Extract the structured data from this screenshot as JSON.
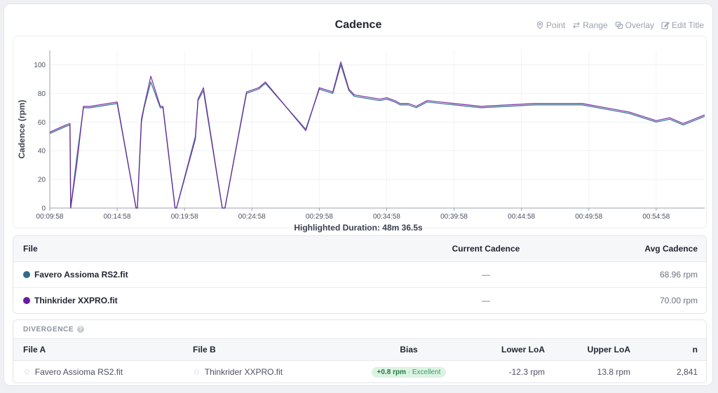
{
  "chart": {
    "title": "Cadence",
    "toolbar": [
      {
        "icon": "pin-icon",
        "label": "Point"
      },
      {
        "icon": "arrows-icon",
        "label": "Range"
      },
      {
        "icon": "overlay-icon",
        "label": "Overlay"
      },
      {
        "icon": "edit-icon",
        "label": "Edit Title"
      }
    ],
    "highlighted_duration": "Highlighted Duration: 48m 36.5s"
  },
  "chart_data": {
    "type": "line",
    "ylabel": "Cadence (rpm)",
    "xlabel": "",
    "ylim": [
      0,
      110
    ],
    "yticks": [
      0,
      20,
      40,
      60,
      80,
      100
    ],
    "xlim": [
      "00:09:58",
      "00:58:34"
    ],
    "xticks": [
      "00:09:58",
      "00:14:58",
      "00:19:58",
      "00:24:58",
      "00:29:58",
      "00:34:58",
      "00:39:58",
      "00:44:58",
      "00:49:58",
      "00:54:58"
    ],
    "grid": true,
    "x_unit_minutes_since_0958": [
      0,
      1.2,
      1.5,
      1.55,
      2.0,
      2.5,
      3.0,
      5.0,
      6.4,
      6.5,
      6.8,
      7.0,
      7.5,
      8.2,
      8.4,
      9.3,
      9.4,
      10.8,
      11.0,
      11.4,
      12.8,
      13.0,
      14.4,
      14.6,
      15.5,
      16.0,
      19.0,
      20.0,
      21.0,
      21.6,
      22.2,
      22.6,
      24.5,
      25.0,
      25.6,
      26.0,
      26.6,
      27.2,
      28.0,
      30.0,
      32.0,
      36.0,
      39.5,
      43.0,
      45.0,
      46.0,
      47.0,
      48.6
    ],
    "series": [
      {
        "name": "Favero Assioma RS2.fit",
        "color": "#2e6c8a",
        "values": [
          52,
          57,
          58,
          0,
          35,
          70,
          70,
          73,
          0,
          0,
          60,
          70,
          88,
          70,
          70,
          0,
          0,
          50,
          75,
          82,
          0,
          0,
          70,
          80,
          83,
          87,
          55,
          83,
          80,
          100,
          82,
          78,
          75,
          76,
          74,
          72,
          72,
          70,
          74,
          72,
          70,
          72,
          72,
          66,
          60,
          62,
          58,
          64
        ]
      },
      {
        "name": "Thinkrider XXPRO.fit",
        "color": "#6a1b9a",
        "values": [
          53,
          58,
          59,
          0,
          30,
          71,
          71,
          74,
          0,
          0,
          62,
          71,
          92,
          71,
          71,
          0,
          0,
          48,
          76,
          84,
          0,
          0,
          71,
          81,
          84,
          88,
          54,
          84,
          81,
          102,
          83,
          79,
          76,
          77,
          75,
          73,
          73,
          71,
          75,
          73,
          71,
          73,
          73,
          67,
          61,
          63,
          59,
          65
        ]
      }
    ]
  },
  "files_table": {
    "headers": {
      "file": "File",
      "current": "Current Cadence",
      "avg": "Avg Cadence"
    },
    "rows": [
      {
        "name": "Favero Assioma RS2.fit",
        "color": "#2e6c8a",
        "current": "—",
        "avg": "68.96 rpm"
      },
      {
        "name": "Thinkrider XXPRO.fit",
        "color": "#6a1b9a",
        "current": "—",
        "avg": "70.00 rpm"
      }
    ]
  },
  "divergence": {
    "label": "DIVERGENCE",
    "headers": {
      "file_a": "File A",
      "file_b": "File B",
      "bias": "Bias",
      "lower": "Lower LoA",
      "upper": "Upper LoA",
      "n": "n"
    },
    "row": {
      "file_a": "Favero Assioma RS2.fit",
      "file_b": "Thinkrider XXPRO.fit",
      "bias_value": "+0.8 rpm",
      "bias_quality": "· Excellent",
      "lower": "-12.3 rpm",
      "upper": "13.8 rpm",
      "n": "2,841"
    }
  }
}
